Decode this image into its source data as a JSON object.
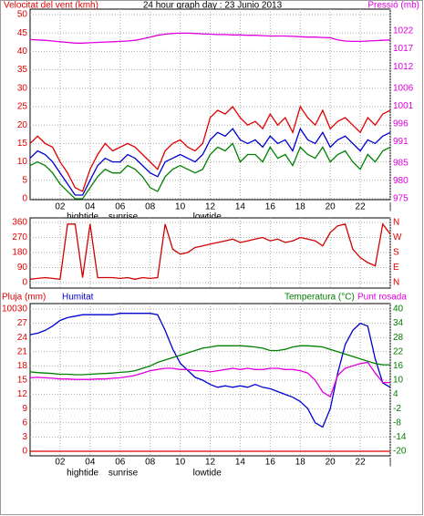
{
  "chart_data": [
    {
      "type": "line",
      "title": "24 hour graph day : 23 Junio 2013",
      "ylabel": "Velocitat del vent (kmh)",
      "y2label": "Pressió (mb)",
      "ylabel_color": "#e00000",
      "y2label_color": "#e000e0",
      "x": [
        0,
        0.5,
        1,
        1.5,
        2,
        2.5,
        3,
        3.5,
        4,
        4.5,
        5,
        5.5,
        6,
        6.5,
        7,
        7.5,
        8,
        8.5,
        9,
        9.5,
        10,
        10.5,
        11,
        11.5,
        12,
        12.5,
        13,
        13.5,
        14,
        14.5,
        15,
        15.5,
        16,
        16.5,
        17,
        17.5,
        18,
        18.5,
        19,
        19.5,
        20,
        20.5,
        21,
        21.5,
        22,
        22.5,
        23,
        23.5,
        24
      ],
      "series": [
        {
          "color": "#e00000",
          "values": [
            15,
            17,
            15,
            14,
            10,
            7,
            3,
            2,
            8,
            12,
            15,
            13,
            14,
            15,
            14,
            12,
            10,
            8,
            13,
            15,
            16,
            14,
            13,
            15,
            22,
            24,
            23,
            25,
            22,
            20,
            21,
            19,
            23,
            20,
            22,
            18,
            25,
            22,
            20,
            24,
            19,
            21,
            22,
            20,
            18,
            22,
            20,
            23,
            24
          ]
        },
        {
          "color": "#008000",
          "values": [
            9,
            10,
            9,
            7,
            4,
            2,
            0,
            0,
            3,
            6,
            8,
            7,
            7,
            9,
            8,
            6,
            3,
            2,
            6,
            8,
            9,
            8,
            7,
            8,
            12,
            14,
            13,
            15,
            10,
            12,
            12,
            10,
            14,
            11,
            12,
            9,
            14,
            12,
            11,
            14,
            10,
            12,
            13,
            10,
            8,
            12,
            10,
            13,
            14
          ]
        },
        {
          "color": "#0000d0",
          "values": [
            11,
            13,
            12,
            10,
            7,
            4,
            1,
            1,
            5,
            9,
            11,
            10,
            10,
            12,
            11,
            9,
            7,
            6,
            10,
            11,
            12,
            11,
            10,
            12,
            16,
            18,
            17,
            19,
            16,
            15,
            16,
            14,
            17,
            15,
            16,
            13,
            19,
            16,
            15,
            18,
            14,
            16,
            17,
            15,
            13,
            16,
            15,
            17,
            18
          ]
        },
        {
          "color": "#e000e0",
          "axis": "y2",
          "values": [
            1019.6,
            1019.5,
            1019.4,
            1019.2,
            1019.0,
            1018.8,
            1018.6,
            1018.6,
            1018.7,
            1018.8,
            1018.9,
            1019.0,
            1019.1,
            1019.2,
            1019.4,
            1019.8,
            1020.3,
            1020.8,
            1021.1,
            1021.3,
            1021.4,
            1021.4,
            1021.3,
            1021.2,
            1021.1,
            1021.0,
            1021.0,
            1020.9,
            1020.9,
            1020.8,
            1020.8,
            1020.7,
            1020.6,
            1020.6,
            1020.6,
            1020.5,
            1020.4,
            1020.3,
            1020.3,
            1020.2,
            1020.1,
            1019.5,
            1019.2,
            1019.1,
            1019.1,
            1019.2,
            1019.3,
            1019.4,
            1019.5
          ]
        }
      ],
      "xlim": [
        0,
        24
      ],
      "xticks": [
        {
          "value": 2,
          "label": "02"
        },
        {
          "value": 4,
          "label": "04"
        },
        {
          "value": 6,
          "label": "06"
        },
        {
          "value": 8,
          "label": "08"
        },
        {
          "value": 10,
          "label": "10"
        },
        {
          "value": 12,
          "label": "12"
        },
        {
          "value": 14,
          "label": "14"
        },
        {
          "value": 16,
          "label": "16"
        },
        {
          "value": 18,
          "label": "18"
        },
        {
          "value": 20,
          "label": "20"
        },
        {
          "value": 22,
          "label": "22"
        },
        {
          "value": 24,
          "label": "|"
        }
      ],
      "ylim": [
        0,
        50
      ],
      "yticks": [
        0,
        5,
        10,
        15,
        20,
        25,
        30,
        35,
        40,
        45,
        50
      ],
      "ytick_color": "#e00000",
      "y2lim": [
        975,
        1026.6
      ],
      "y2ticks": [
        975,
        980,
        985,
        991,
        996,
        1001,
        1006,
        1012,
        1017,
        1022
      ],
      "y2tick_color": "#e000e0",
      "annotations": [
        {
          "text": "hightide",
          "x": 3.5
        },
        {
          "text": "sunrise",
          "x": 6.2
        },
        {
          "text": "lowtide",
          "x": 11.8
        }
      ],
      "grid": true
    },
    {
      "type": "line",
      "x": [
        0,
        0.5,
        1,
        1.5,
        2,
        2.5,
        3,
        3.5,
        4,
        4.5,
        5,
        5.5,
        6,
        6.5,
        7,
        7.5,
        8,
        8.5,
        9,
        9.5,
        10,
        10.5,
        11,
        11.5,
        12,
        12.5,
        13,
        13.5,
        14,
        14.5,
        15,
        15.5,
        16,
        16.5,
        17,
        17.5,
        18,
        18.5,
        19,
        19.5,
        20,
        20.5,
        21,
        21.5,
        22,
        22.5,
        23,
        23.5,
        24
      ],
      "series": [
        {
          "color": "#d00000",
          "values": [
            20,
            25,
            30,
            25,
            20,
            350,
            350,
            30,
            350,
            30,
            30,
            30,
            25,
            30,
            20,
            30,
            25,
            30,
            350,
            200,
            170,
            180,
            210,
            220,
            230,
            240,
            250,
            260,
            240,
            250,
            260,
            270,
            250,
            260,
            240,
            250,
            270,
            260,
            250,
            220,
            300,
            340,
            350,
            200,
            150,
            120,
            100,
            350,
            290
          ]
        }
      ],
      "xlim": [
        0,
        24
      ],
      "xticks": [
        2,
        4,
        6,
        8,
        10,
        12,
        14,
        16,
        18,
        20,
        22,
        24
      ],
      "ylim": [
        0,
        360
      ],
      "yticks": [
        0,
        90,
        180,
        270,
        360
      ],
      "ytick_color": "#e00000",
      "y2lim": [
        0,
        360
      ],
      "y2ticks": [
        {
          "value": 0,
          "label": "N"
        },
        {
          "value": 90,
          "label": "E"
        },
        {
          "value": 180,
          "label": "S"
        },
        {
          "value": 270,
          "label": "W"
        },
        {
          "value": 360,
          "label": "N"
        }
      ],
      "y2tick_color": "#e00000",
      "grid": true
    },
    {
      "type": "line",
      "x": [
        0,
        0.5,
        1,
        1.5,
        2,
        2.5,
        3,
        3.5,
        4,
        4.5,
        5,
        5.5,
        6,
        6.5,
        7,
        7.5,
        8,
        8.5,
        9,
        9.5,
        10,
        10.5,
        11,
        11.5,
        12,
        12.5,
        13,
        13.5,
        14,
        14.5,
        15,
        15.5,
        16,
        16.5,
        17,
        17.5,
        18,
        18.5,
        19,
        19.5,
        20,
        20.5,
        21,
        21.5,
        22,
        22.5,
        23,
        23.5,
        24
      ],
      "series": [
        {
          "name": "Pluja (mm)",
          "color": "#e00000",
          "values": [
            0,
            0,
            0,
            0,
            0,
            0,
            0,
            0,
            0,
            0,
            0,
            0,
            0,
            0,
            0,
            0,
            0,
            0,
            0,
            0,
            0,
            0,
            0,
            0,
            0,
            0,
            0,
            0,
            0,
            0,
            0,
            0,
            0,
            0,
            0,
            0,
            0,
            0,
            0,
            0,
            0,
            0,
            0,
            0,
            0,
            0,
            0,
            0,
            0
          ]
        },
        {
          "name": "Humitat",
          "color": "#0000d0",
          "axis": "y3",
          "values": [
            82,
            83,
            85,
            88,
            92,
            94,
            95,
            96,
            96,
            96,
            96,
            96,
            97,
            97,
            97,
            97,
            97,
            96,
            85,
            72,
            62,
            57,
            52,
            50,
            47,
            45,
            46,
            45,
            46,
            45,
            47,
            45,
            44,
            42,
            40,
            38,
            35,
            30,
            20,
            17,
            30,
            55,
            75,
            85,
            90,
            88,
            65,
            48,
            45
          ]
        },
        {
          "name": "Temperatura (°C)",
          "color": "#008000",
          "axis": "y2",
          "values": [
            13.5,
            13.2,
            13.0,
            12.8,
            12.5,
            12.5,
            12.3,
            12.3,
            12.5,
            12.7,
            12.8,
            13.0,
            13.3,
            13.5,
            14.0,
            15.0,
            16.0,
            17.5,
            18.5,
            19.5,
            20.5,
            21.5,
            22.5,
            23.5,
            24,
            24.5,
            24.5,
            24.5,
            24.5,
            24.3,
            24,
            23.5,
            22.5,
            22.5,
            23,
            24,
            24.5,
            24.5,
            24.3,
            24,
            23,
            22,
            21,
            20,
            19,
            18,
            17,
            16.5,
            16.5
          ]
        },
        {
          "name": "Punt rosada",
          "color": "#e000e0",
          "axis": "y2",
          "values": [
            11,
            11.2,
            11,
            10.8,
            10.5,
            10.5,
            10.3,
            10.3,
            10.3,
            10.5,
            10.5,
            10.8,
            11,
            11.5,
            12,
            13,
            14,
            14.5,
            15,
            15,
            14.5,
            14.5,
            14,
            14,
            13.5,
            14,
            14.5,
            15,
            14.5,
            15,
            14.5,
            14.5,
            15,
            15,
            14.5,
            14.5,
            14,
            13,
            10,
            5,
            3,
            12,
            15,
            16,
            17,
            17.5,
            13,
            9,
            9
          ]
        }
      ],
      "xlim": [
        0,
        24
      ],
      "xticks": [
        {
          "value": 2,
          "label": "02"
        },
        {
          "value": 4,
          "label": "04"
        },
        {
          "value": 6,
          "label": "06"
        },
        {
          "value": 8,
          "label": "08"
        },
        {
          "value": 10,
          "label": "10"
        },
        {
          "value": 12,
          "label": "12"
        },
        {
          "value": 14,
          "label": "14"
        },
        {
          "value": 16,
          "label": "16"
        },
        {
          "value": 18,
          "label": "18"
        },
        {
          "value": 20,
          "label": "20"
        },
        {
          "value": 22,
          "label": "22"
        },
        {
          "value": 24,
          "label": "|"
        }
      ],
      "ylim": [
        0,
        30
      ],
      "yticks": [
        0,
        3,
        6,
        9,
        12,
        15,
        18,
        21,
        24,
        27,
        30
      ],
      "ytick_color": "#e00000",
      "y2lim": [
        -20,
        40
      ],
      "y2ticks": [
        -20,
        -14,
        -8,
        -2,
        4,
        10,
        16,
        22,
        28,
        34,
        40
      ],
      "y2tick_color": "#008000",
      "y3lim": [
        0,
        100
      ],
      "y3ticks": [
        100
      ],
      "y3tick_color": "#e00000",
      "annotations": [
        {
          "text": "hightide",
          "x": 3.5
        },
        {
          "text": "sunrise",
          "x": 6.2
        },
        {
          "text": "lowtide",
          "x": 11.8
        }
      ],
      "grid": true
    }
  ]
}
